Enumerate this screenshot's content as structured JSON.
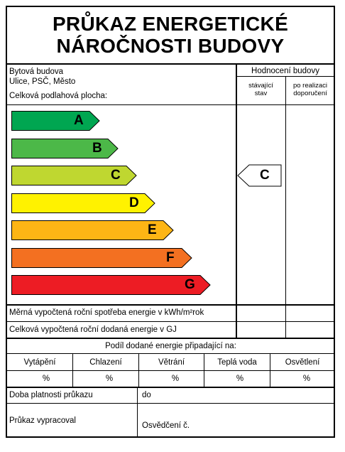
{
  "title": {
    "line1": "PRŮKAZ ENERGETICKÉ",
    "line2": "NÁROČNOSTI BUDOVY"
  },
  "building": {
    "type": "Bytová budova",
    "address": "Ulice, PSČ, Město",
    "floor_area_label": "Celková podlahová plocha:"
  },
  "rating_header": {
    "title": "Hodnocení budovy",
    "current_line1": "stávající",
    "current_line2": "stav",
    "after_line1": "po realizaci",
    "after_line2": "doporučení"
  },
  "energy_classes": [
    {
      "label": "A",
      "color": "#00a651"
    },
    {
      "label": "B",
      "color": "#4cb848"
    },
    {
      "label": "C",
      "color": "#bfd730"
    },
    {
      "label": "D",
      "color": "#fff200"
    },
    {
      "label": "E",
      "color": "#fdb515"
    },
    {
      "label": "F",
      "color": "#f37021"
    },
    {
      "label": "G",
      "color": "#ed1c24"
    }
  ],
  "current_rating": "C",
  "rows": {
    "specific_consumption": "Měrná vypočtená roční spotřeba energie v kWh/m²rok",
    "total_delivered": "Celková vypočtená roční dodaná energie v GJ"
  },
  "share": {
    "title": "Podíl dodané energie připadající na:",
    "columns": [
      "Vytápění",
      "Chlazení",
      "Větrání",
      "Teplá voda",
      "Osvětlení"
    ],
    "units": [
      "%",
      "%",
      "%",
      "%",
      "%"
    ]
  },
  "validity": {
    "label": "Doba platnosti průkazu",
    "value_label": "do"
  },
  "author": {
    "label": "Průkaz vypracoval",
    "certificate_label": "Osvědčení č."
  }
}
